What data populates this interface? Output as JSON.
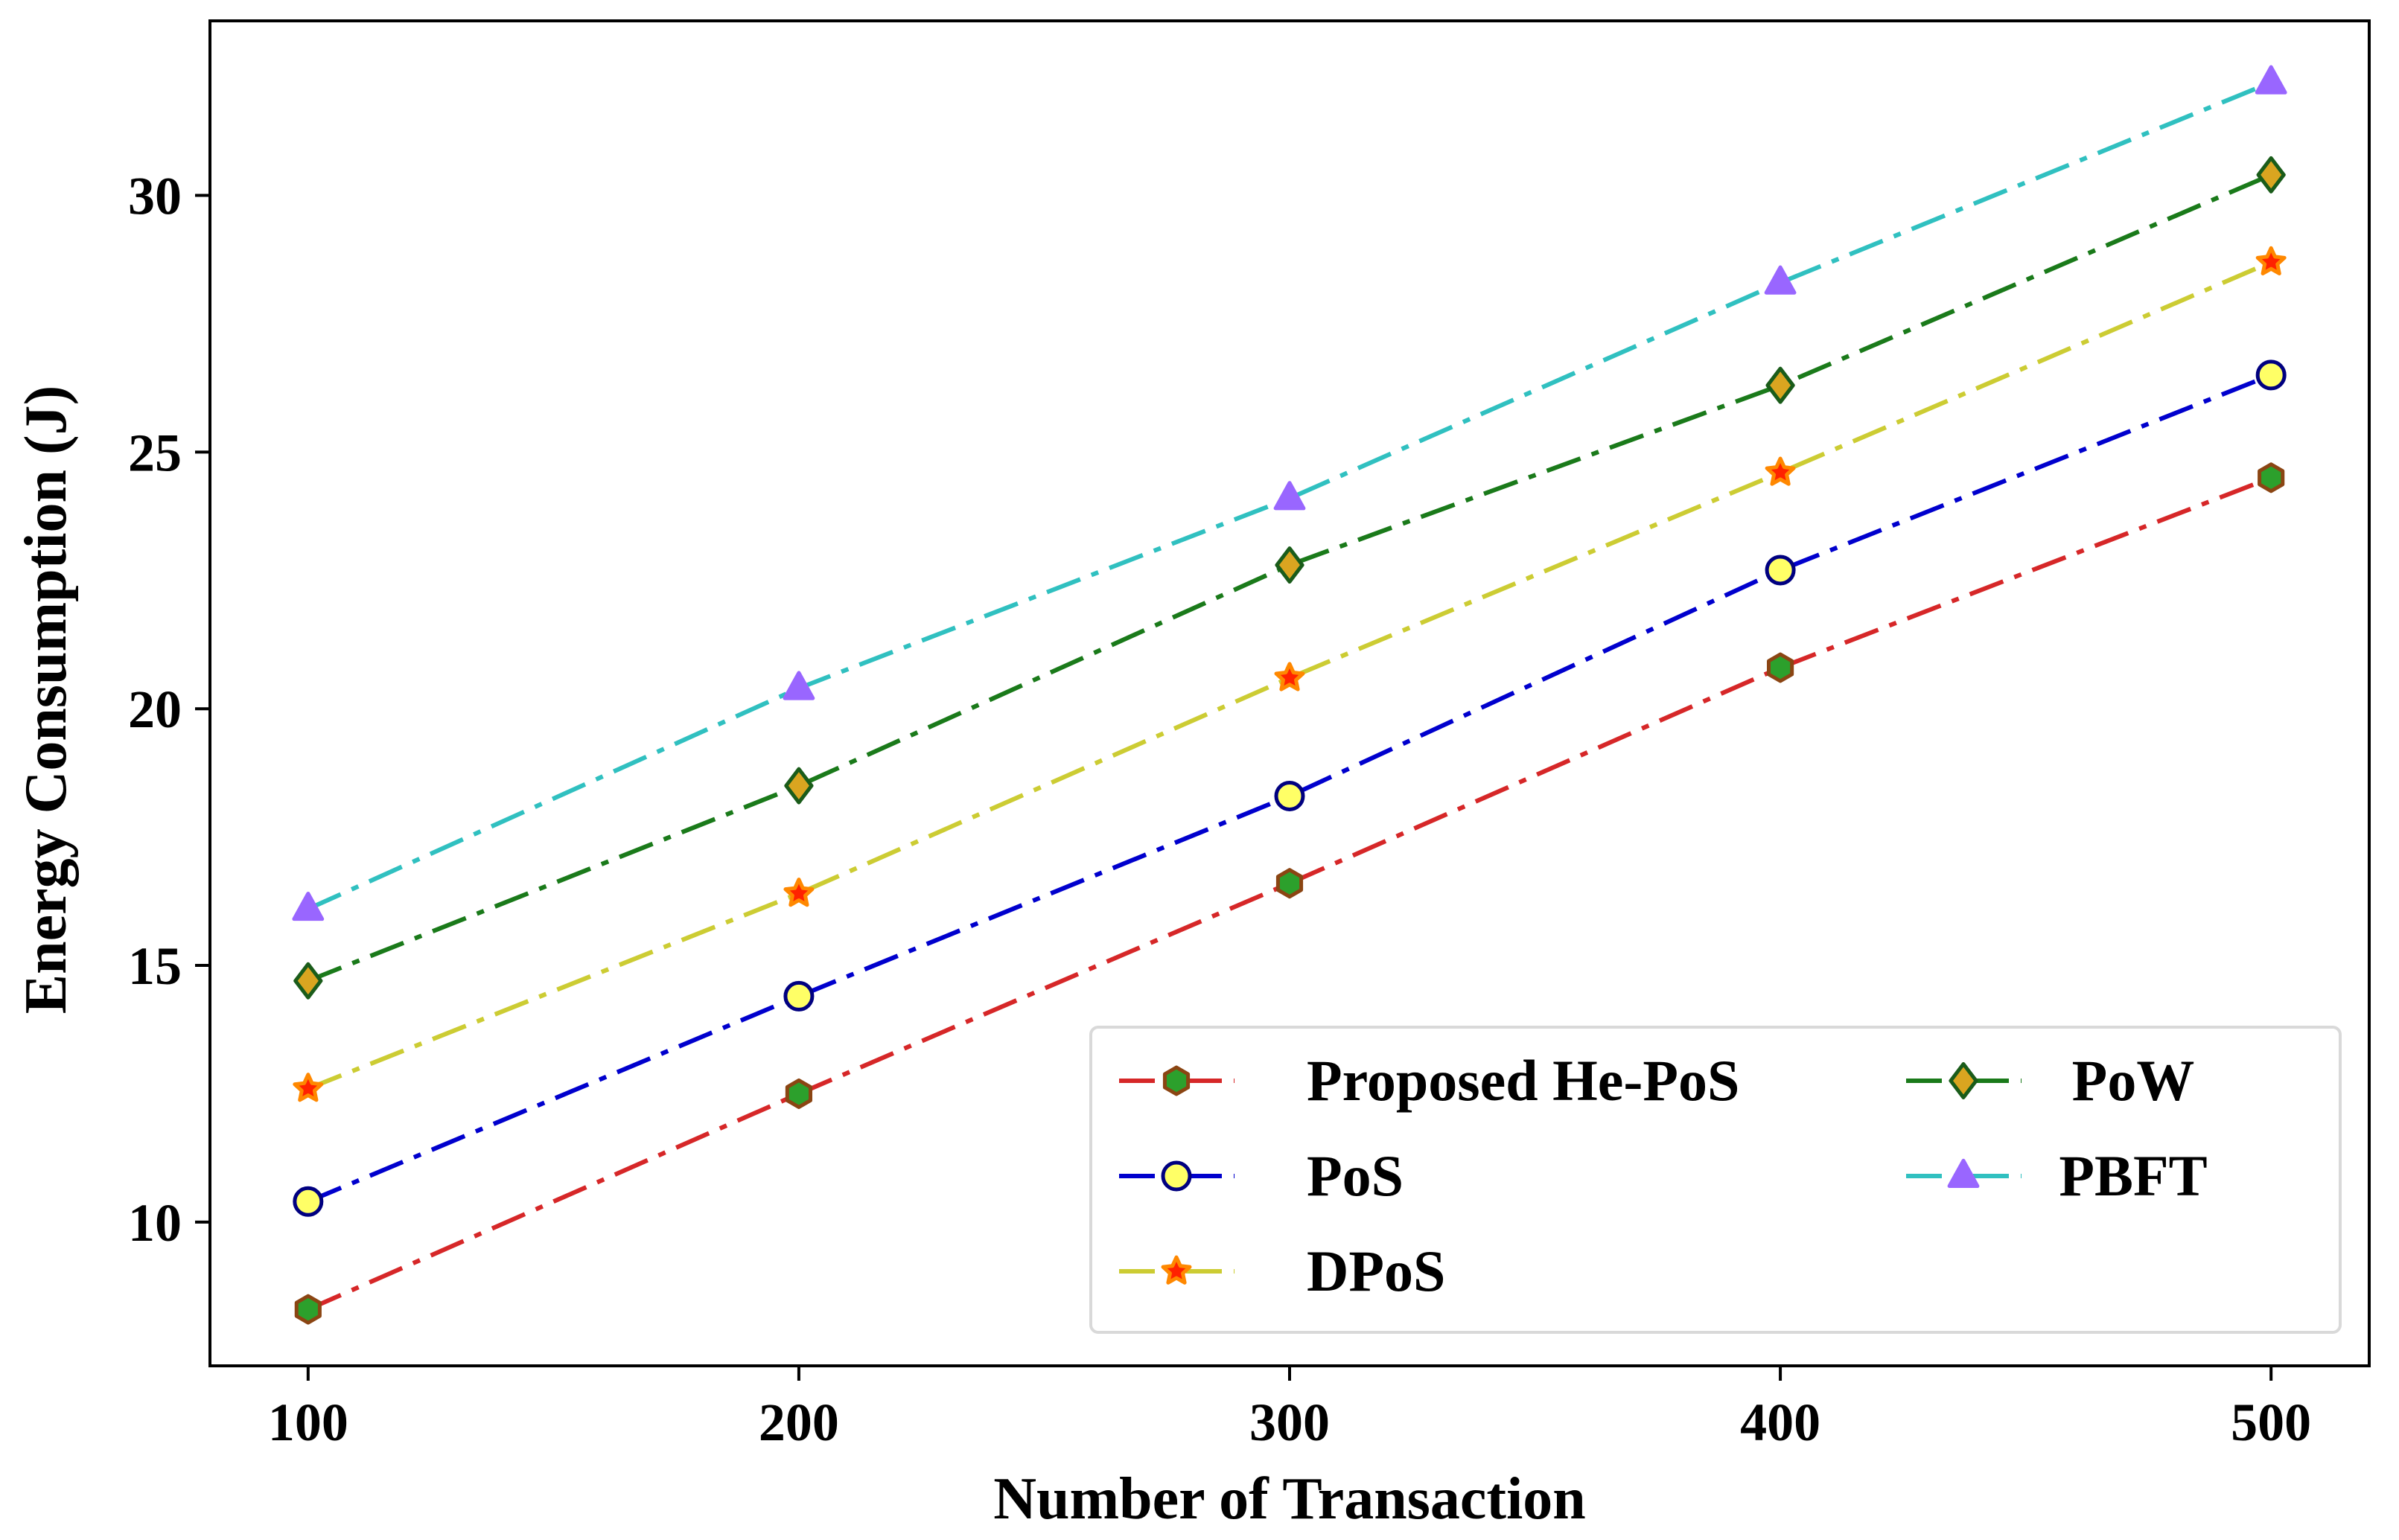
{
  "chart_data": {
    "type": "line",
    "title": "",
    "xlabel": "Number of Transaction",
    "ylabel": "Energy Consumption (J)",
    "x": [
      100,
      200,
      300,
      400,
      500
    ],
    "xlim": [
      80,
      520
    ],
    "ylim": [
      7.2,
      33.4
    ],
    "xticks": [
      100,
      200,
      300,
      400,
      500
    ],
    "yticks": [
      10,
      15,
      20,
      25,
      30
    ],
    "grid": false,
    "legend": {
      "placement": "lower-right",
      "columns": 2
    },
    "series": [
      {
        "name": "Proposed He-PoS",
        "values": [
          8.3,
          12.5,
          16.6,
          20.8,
          24.5
        ],
        "line_color": "#d62728",
        "marker": "hexagon",
        "marker_fill": "#2ca02c",
        "marker_edge": "#8b4513",
        "dash": "dashdot"
      },
      {
        "name": "PoS",
        "values": [
          10.4,
          14.4,
          18.3,
          22.7,
          26.5
        ],
        "line_color": "#0000cd",
        "marker": "circle",
        "marker_fill": "#ffff66",
        "marker_edge": "#000080",
        "dash": "dashdot"
      },
      {
        "name": "DPoS",
        "values": [
          12.6,
          16.4,
          20.6,
          24.6,
          28.7
        ],
        "line_color": "#cccc33",
        "marker": "star",
        "marker_fill": "#ff2200",
        "marker_edge": "#ff8800",
        "dash": "dashdot"
      },
      {
        "name": "PoW",
        "values": [
          14.7,
          18.5,
          22.8,
          26.3,
          30.4
        ],
        "line_color": "#1a7a1a",
        "marker": "diamond",
        "marker_fill": "#daa520",
        "marker_edge": "#1a5c1a",
        "dash": "dashdot"
      },
      {
        "name": "PBFT",
        "values": [
          16.1,
          20.4,
          24.1,
          28.3,
          32.2
        ],
        "line_color": "#30c0c0",
        "marker": "triangle",
        "marker_fill": "#9966ff",
        "marker_edge": "#9966ff",
        "dash": "dashdot"
      }
    ]
  }
}
